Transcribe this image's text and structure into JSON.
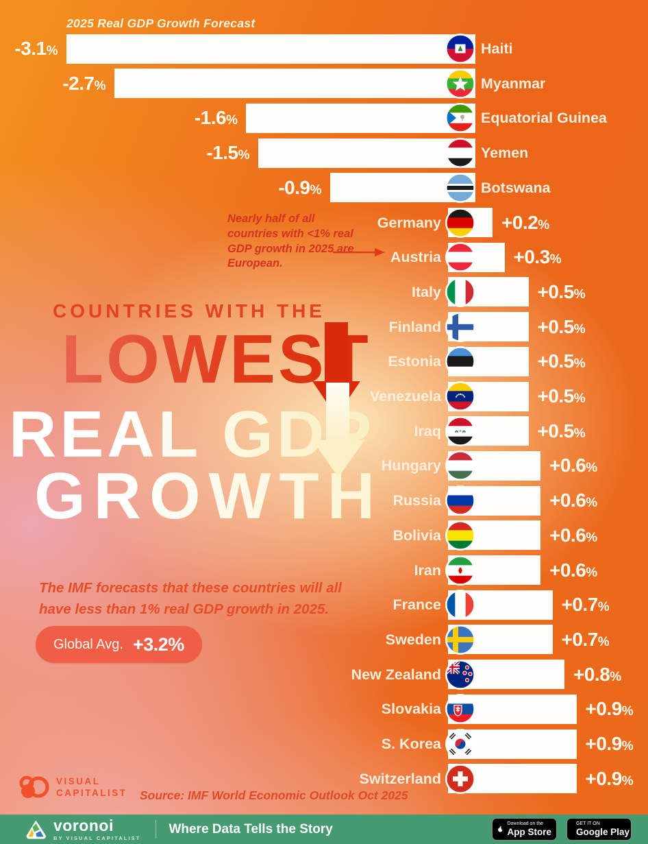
{
  "chart_label": "2025 Real GDP Growth Forecast",
  "chart_data": {
    "type": "bar",
    "orientation": "horizontal",
    "title": "2025 Real GDP Growth Forecast",
    "value_suffix": "%",
    "xlim": [
      -3.5,
      1.0
    ],
    "legend": false,
    "categories": [
      "Haiti",
      "Myanmar",
      "Equatorial Guinea",
      "Yemen",
      "Botswana",
      "Germany",
      "Austria",
      "Italy",
      "Finland",
      "Estonia",
      "Venezuela",
      "Iraq",
      "Hungary",
      "Russia",
      "Bolivia",
      "Iran",
      "France",
      "Sweden",
      "New Zealand",
      "Slovakia",
      "S. Korea",
      "Switzerland"
    ],
    "values": [
      -3.1,
      -2.7,
      -1.6,
      -1.5,
      -0.9,
      0.2,
      0.3,
      0.5,
      0.5,
      0.5,
      0.5,
      0.5,
      0.6,
      0.6,
      0.6,
      0.6,
      0.7,
      0.7,
      0.8,
      0.9,
      0.9,
      0.9
    ],
    "value_labels": [
      "-3.1%",
      "-2.7%",
      "-1.6%",
      "-1.5%",
      "-0.9%",
      "+0.2%",
      "+0.3%",
      "+0.5%",
      "+0.5%",
      "+0.5%",
      "+0.5%",
      "+0.5%",
      "+0.6%",
      "+0.6%",
      "+0.6%",
      "+0.6%",
      "+0.7%",
      "+0.7%",
      "+0.8%",
      "+0.9%",
      "+0.9%",
      "+0.9%"
    ],
    "flags": [
      "haiti",
      "myanmar",
      "equatorial-guinea",
      "yemen",
      "botswana",
      "germany",
      "austria",
      "italy",
      "finland",
      "estonia",
      "venezuela",
      "iraq",
      "hungary",
      "russia",
      "bolivia",
      "iran",
      "france",
      "sweden",
      "new-zealand",
      "slovakia",
      "south-korea",
      "switzerland"
    ],
    "annotation": "Nearly half of all countries with <1% real GDP growth in 2025 are European.",
    "global_average_label": "Global Avg.",
    "global_average_value": "+3.2%",
    "source": "IMF World Economic Outlook Oct 2025"
  },
  "title": {
    "kicker": "COUNTRIES WITH THE",
    "line1": "LOWEST",
    "line2": "REAL GDP",
    "line3": "GROWTH"
  },
  "subtitle": "The IMF forecasts that these countries will all have less than 1% real GDP growth in 2025.",
  "badge": {
    "label": "Global Avg.",
    "value": "+3.2%"
  },
  "footer": {
    "logo_line1": "VISUAL",
    "logo_line2": "CAPITALIST",
    "source": "Source: IMF World Economic Outlook Oct 2025"
  },
  "bottom_bar": {
    "brand": "voronoi",
    "brand_sub": "BY VISUAL CAPITALIST",
    "tagline": "Where Data Tells the Story",
    "app_store": {
      "small": "Download on the",
      "big": "App Store"
    },
    "google_play": {
      "small": "GET IT ON",
      "big": "Google Play"
    }
  },
  "colors": {
    "background_orange": "#ec6a1b",
    "background_pink": "#eeaab8",
    "cream_glow": "#fdf0c4",
    "accent_red": "#dc3514",
    "annotation_red": "#d23420",
    "badge_coral": "#f15e47",
    "bottom_bar_green": "#459a72",
    "bar_white": "#ffffff"
  }
}
